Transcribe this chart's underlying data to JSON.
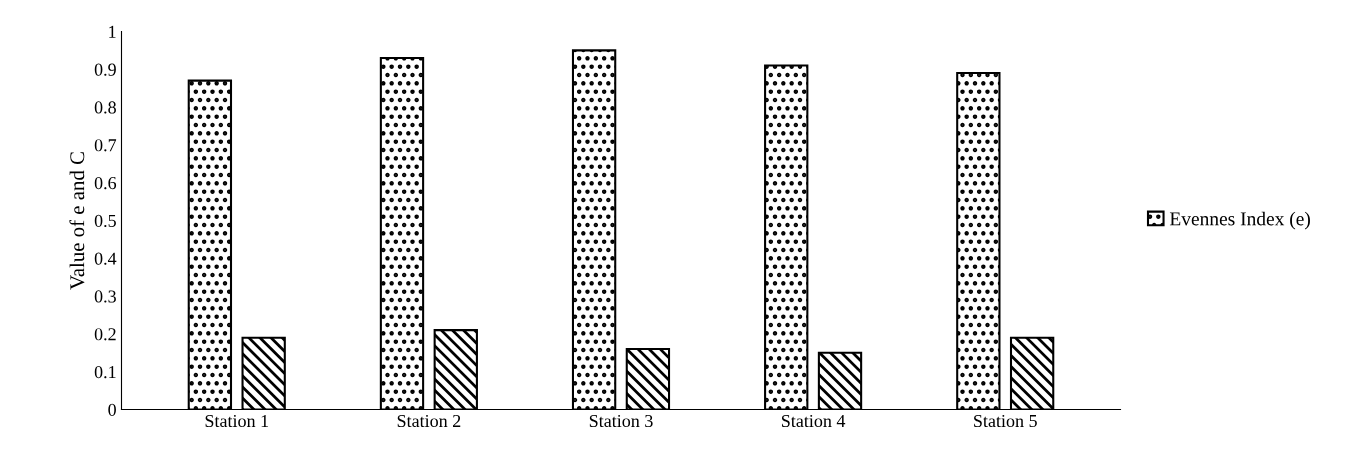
{
  "chart_data": {
    "type": "bar",
    "ylabel": "Value of e and C",
    "categories": [
      "Station 1",
      "Station 2",
      "Station 3",
      "Station 4",
      "Station 5"
    ],
    "series": [
      {
        "name": "Evennes Index (e)",
        "color": "#000000",
        "values": [
          0.87,
          0.93,
          0.95,
          0.91,
          0.89
        ]
      },
      {
        "color": "#000000",
        "values": [
          0.19,
          0.21,
          0.16,
          0.15,
          0.19
        ]
      }
    ],
    "ylim": [
      0,
      1
    ],
    "yticks": [
      0,
      0.1,
      0.2,
      0.3,
      0.4,
      0.5,
      0.6,
      0.7,
      0.8,
      0.9,
      1
    ],
    "grid": false,
    "legend": "right"
  }
}
